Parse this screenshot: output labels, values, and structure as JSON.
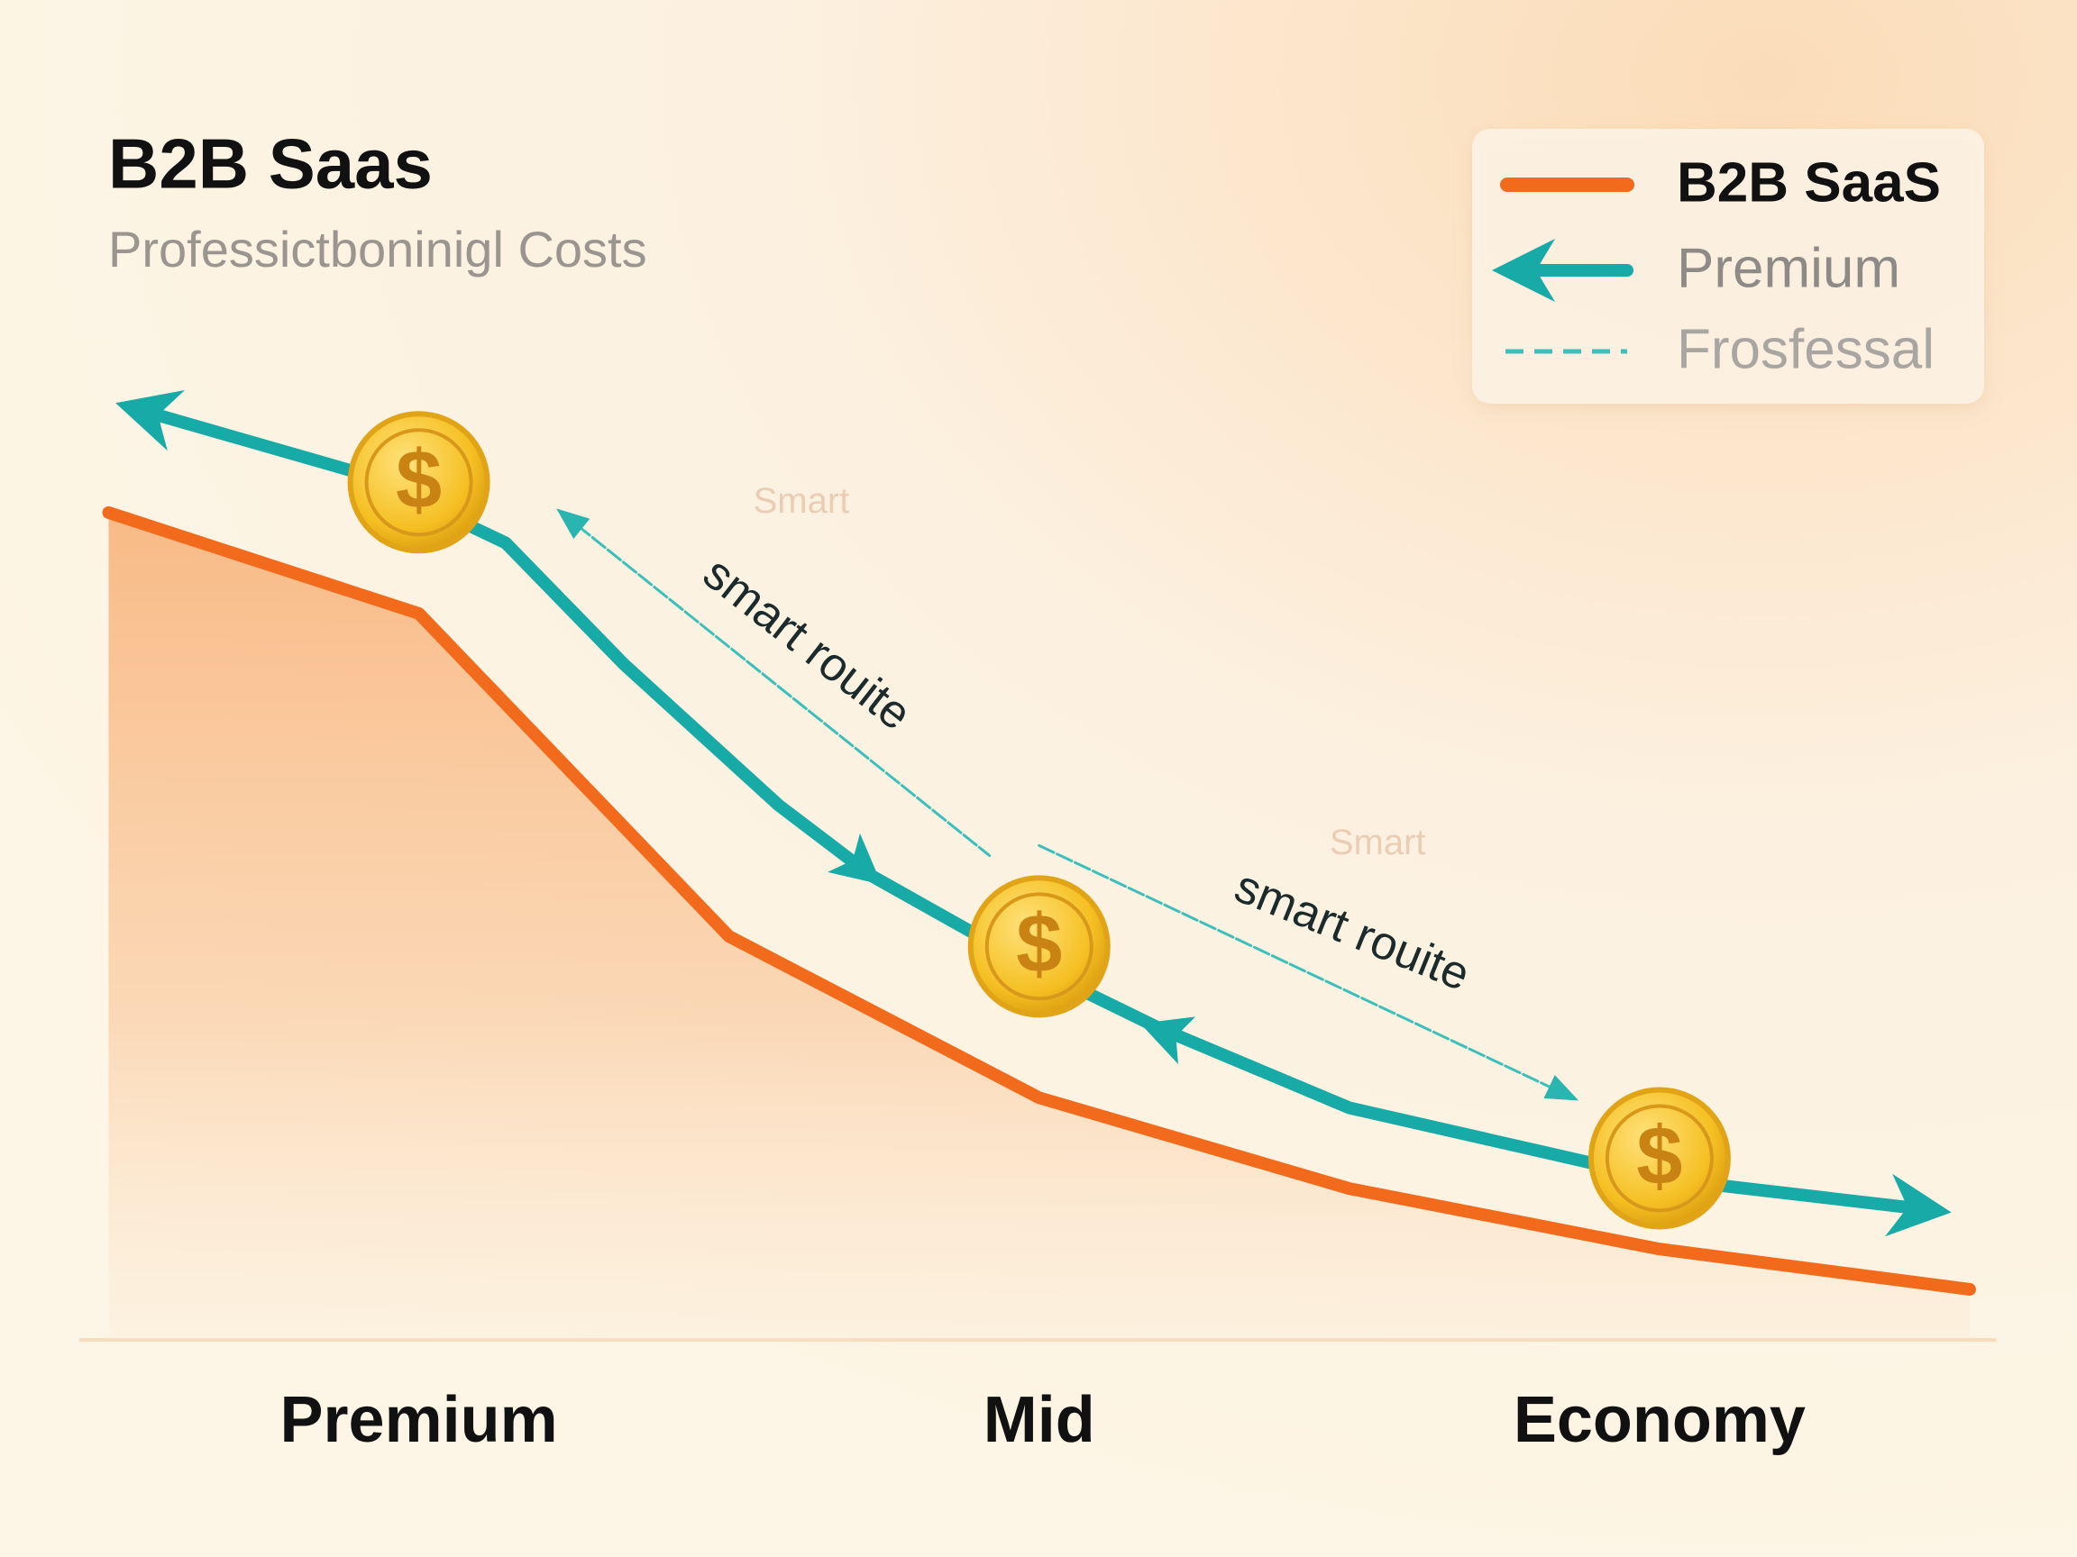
{
  "chart_data": {
    "type": "line",
    "title": "B2B Saas",
    "subtitle": "Professictboninigl Costs",
    "xlim": [
      -0.5,
      2.5
    ],
    "xticks": [
      {
        "value": 0,
        "label": "Premium"
      },
      {
        "value": 1,
        "label": "Mid"
      },
      {
        "value": 2,
        "label": "Economy"
      }
    ],
    "ylim": [
      0,
      100
    ],
    "legend": "top-right",
    "series": [
      {
        "name": "B2B SaaS",
        "color": "#f26a1b",
        "style": "area",
        "x": [
          -0.5,
          0,
          0.5,
          1,
          1.5,
          2,
          2.5
        ],
        "values": [
          82,
          72,
          40,
          24,
          15,
          9,
          5
        ]
      },
      {
        "name": "Premium",
        "color": "#17aaa6",
        "style": "arrow",
        "x": [
          -0.44,
          -0.1,
          0.14,
          0.33,
          0.58,
          0.73,
          0.99,
          1.19,
          1.5,
          2.0,
          2.42
        ],
        "values": [
          92,
          86,
          79,
          67,
          53,
          46,
          37,
          31,
          23,
          16,
          13
        ]
      },
      {
        "name": "Frosfessal",
        "color": "#3cc0bc",
        "style": "dashed",
        "x": [
          0.23,
          0.92,
          null,
          1.0,
          1.86
        ],
        "values": [
          82,
          48,
          null,
          49,
          24
        ]
      }
    ],
    "coins": {
      "label": "$",
      "x": [
        0,
        1,
        2
      ],
      "values": [
        85,
        39,
        18
      ]
    },
    "annotations": [
      "Smart",
      "smart rouite",
      "Smart",
      "smart rouite"
    ]
  }
}
